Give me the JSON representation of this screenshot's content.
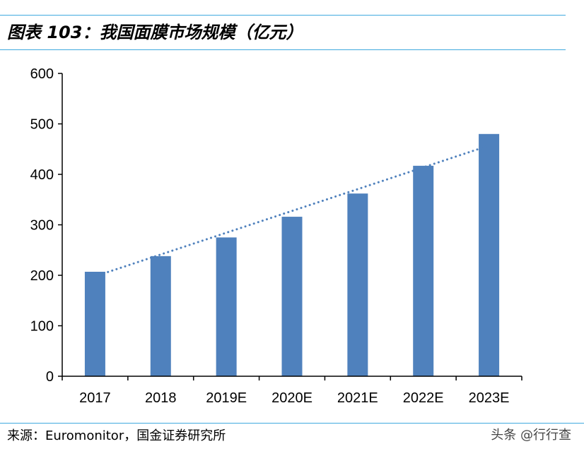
{
  "header": {
    "title": "图表 103：我国面膜市场规模（亿元）"
  },
  "footer": {
    "source": "来源：Euromonitor，国金证券研究所",
    "watermark": "头条 @行行查"
  },
  "colors": {
    "bar": "#4f81bd",
    "trend": "#4f81bd",
    "rule": "#3fa9de",
    "axis": "#000000"
  },
  "chart_data": {
    "type": "bar",
    "title": "我国面膜市场规模（亿元）",
    "categories": [
      "2017",
      "2018",
      "2019E",
      "2020E",
      "2021E",
      "2022E",
      "2023E"
    ],
    "values": [
      207,
      238,
      275,
      316,
      362,
      417,
      480
    ],
    "ylim": [
      0,
      600
    ],
    "yticks": [
      0,
      100,
      200,
      300,
      400,
      500,
      600
    ],
    "xlabel": "",
    "ylabel": "",
    "grid": false,
    "trendline": {
      "type": "linear",
      "style": "dotted",
      "start": 198,
      "end": 457
    }
  }
}
